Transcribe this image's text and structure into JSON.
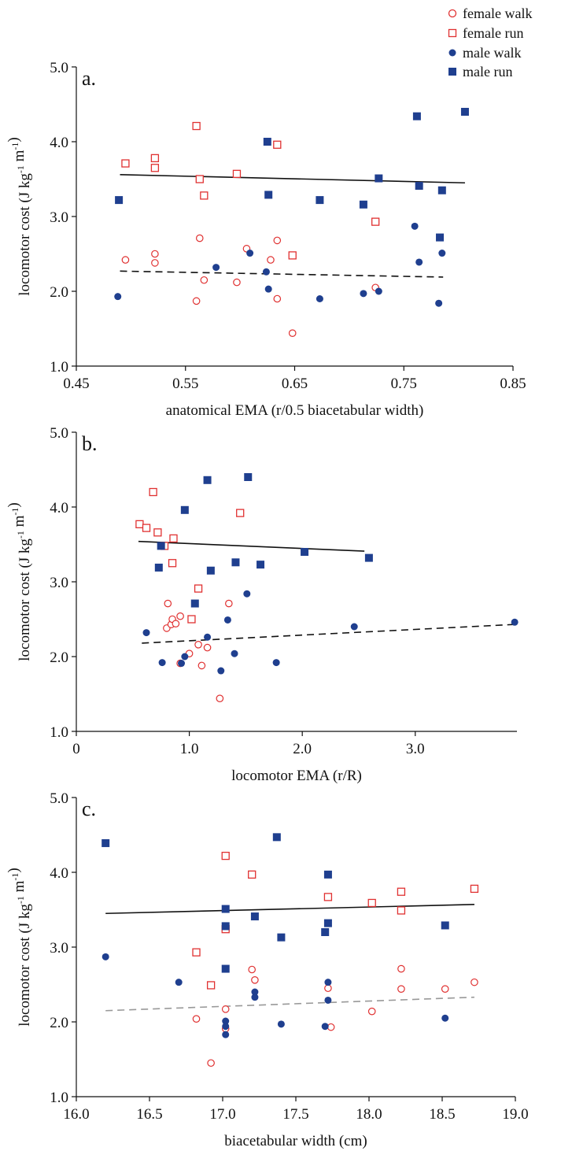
{
  "legend": {
    "items": [
      {
        "label": "female walk",
        "marker": "circle",
        "filled": false,
        "color": "#e03131"
      },
      {
        "label": "female run",
        "marker": "square",
        "filled": false,
        "color": "#e03131"
      },
      {
        "label": "male walk",
        "marker": "circle",
        "filled": true,
        "color": "#1f3f8f"
      },
      {
        "label": "male run",
        "marker": "square",
        "filled": true,
        "color": "#1f3f8f"
      }
    ]
  },
  "colors": {
    "female": "#e03131",
    "male": "#1f3f8f",
    "axis": "#111111",
    "fit_walk_c": "#999999"
  },
  "chart_data": [
    {
      "type": "scatter",
      "panel": "a.",
      "xlabel": "anatomical EMA (r/0.5 biacetabular width)",
      "ylabel": "locomotor cost (J kg-1 m-1)",
      "xlim": [
        0.45,
        0.85
      ],
      "ylim": [
        1.0,
        5.0
      ],
      "xticks": [
        0.45,
        0.55,
        0.65,
        0.75,
        0.85
      ],
      "xtick_labels": [
        "0.45",
        "0.55",
        "0.65",
        "0.75",
        "0.85"
      ],
      "yticks": [
        1.0,
        2.0,
        3.0,
        4.0,
        5.0
      ],
      "ytick_labels": [
        "1.0",
        "2.0",
        "3.0",
        "4.0",
        "5.0"
      ],
      "series": [
        {
          "name": "female walk",
          "points": [
            [
              0.495,
              2.42
            ],
            [
              0.522,
              2.5
            ],
            [
              0.522,
              2.38
            ],
            [
              0.56,
              1.87
            ],
            [
              0.563,
              2.71
            ],
            [
              0.567,
              2.15
            ],
            [
              0.597,
              2.12
            ],
            [
              0.606,
              2.57
            ],
            [
              0.628,
              2.42
            ],
            [
              0.634,
              2.68
            ],
            [
              0.634,
              1.9
            ],
            [
              0.648,
              1.44
            ],
            [
              0.724,
              2.05
            ]
          ]
        },
        {
          "name": "female run",
          "points": [
            [
              0.495,
              3.71
            ],
            [
              0.522,
              3.78
            ],
            [
              0.522,
              3.65
            ],
            [
              0.56,
              4.21
            ],
            [
              0.563,
              3.5
            ],
            [
              0.567,
              3.28
            ],
            [
              0.597,
              3.57
            ],
            [
              0.634,
              3.96
            ],
            [
              0.648,
              2.48
            ],
            [
              0.724,
              2.93
            ]
          ]
        },
        {
          "name": "male walk",
          "points": [
            [
              0.488,
              1.93
            ],
            [
              0.578,
              2.32
            ],
            [
              0.609,
              2.51
            ],
            [
              0.624,
              2.26
            ],
            [
              0.626,
              2.03
            ],
            [
              0.673,
              1.9
            ],
            [
              0.713,
              1.97
            ],
            [
              0.727,
              2.0
            ],
            [
              0.76,
              2.87
            ],
            [
              0.764,
              2.39
            ],
            [
              0.782,
              1.84
            ],
            [
              0.785,
              2.51
            ]
          ]
        },
        {
          "name": "male run",
          "points": [
            [
              0.489,
              3.22
            ],
            [
              0.625,
              4.0
            ],
            [
              0.626,
              3.29
            ],
            [
              0.673,
              3.22
            ],
            [
              0.713,
              3.16
            ],
            [
              0.727,
              3.51
            ],
            [
              0.762,
              4.34
            ],
            [
              0.764,
              3.41
            ],
            [
              0.783,
              2.72
            ],
            [
              0.785,
              3.35
            ],
            [
              0.806,
              4.4
            ]
          ]
        }
      ],
      "fits": [
        {
          "group": "run",
          "style": "solid",
          "x": [
            0.49,
            0.806
          ],
          "y": [
            3.56,
            3.45
          ]
        },
        {
          "group": "walk",
          "style": "dashed",
          "x": [
            0.49,
            0.786
          ],
          "y": [
            2.27,
            2.19
          ]
        }
      ]
    },
    {
      "type": "scatter",
      "panel": "b.",
      "xlabel": "locomotor EMA (r/R)",
      "ylabel": "locomotor cost (J kg-1 m-1)",
      "xlim": [
        0,
        3.9
      ],
      "ylim": [
        1.0,
        5.0
      ],
      "xticks": [
        0,
        1.0,
        2.0,
        3.0
      ],
      "xtick_labels": [
        "0",
        "1.0",
        "2.0",
        "3.0"
      ],
      "yticks": [
        1.0,
        2.0,
        3.0,
        4.0,
        5.0
      ],
      "ytick_labels": [
        "1.0",
        "2.0",
        "3.0",
        "4.0",
        "5.0"
      ],
      "series": [
        {
          "name": "female walk",
          "points": [
            [
              0.8,
              2.38
            ],
            [
              0.81,
              2.71
            ],
            [
              0.84,
              2.43
            ],
            [
              0.85,
              2.5
            ],
            [
              0.88,
              2.44
            ],
            [
              0.92,
              2.54
            ],
            [
              0.92,
              1.91
            ],
            [
              1.0,
              2.04
            ],
            [
              1.08,
              2.16
            ],
            [
              1.11,
              1.88
            ],
            [
              1.16,
              2.12
            ],
            [
              1.27,
              1.44
            ],
            [
              1.35,
              2.71
            ]
          ]
        },
        {
          "name": "female run",
          "points": [
            [
              0.56,
              3.77
            ],
            [
              0.62,
              3.72
            ],
            [
              0.68,
              4.2
            ],
            [
              0.72,
              3.66
            ],
            [
              0.78,
              3.48
            ],
            [
              0.85,
              3.25
            ],
            [
              0.86,
              3.58
            ],
            [
              1.02,
              2.5
            ],
            [
              1.08,
              2.91
            ],
            [
              1.45,
              3.92
            ]
          ]
        },
        {
          "name": "male walk",
          "points": [
            [
              0.62,
              2.32
            ],
            [
              0.76,
              1.92
            ],
            [
              0.93,
              1.91
            ],
            [
              0.96,
              2.0
            ],
            [
              1.16,
              2.26
            ],
            [
              1.28,
              1.81
            ],
            [
              1.34,
              2.49
            ],
            [
              1.4,
              2.04
            ],
            [
              1.51,
              2.84
            ],
            [
              1.77,
              1.92
            ],
            [
              2.46,
              2.4
            ],
            [
              3.88,
              2.46
            ]
          ]
        },
        {
          "name": "male run",
          "points": [
            [
              0.73,
              3.19
            ],
            [
              0.75,
              3.48
            ],
            [
              0.96,
              3.96
            ],
            [
              1.05,
              2.71
            ],
            [
              1.16,
              4.36
            ],
            [
              1.19,
              3.15
            ],
            [
              1.41,
              3.26
            ],
            [
              1.52,
              4.4
            ],
            [
              1.63,
              3.23
            ],
            [
              2.02,
              3.4
            ],
            [
              2.59,
              3.32
            ]
          ]
        }
      ],
      "fits": [
        {
          "group": "run",
          "style": "solid",
          "x": [
            0.55,
            2.55
          ],
          "y": [
            3.54,
            3.41
          ]
        },
        {
          "group": "walk",
          "style": "dashed",
          "x": [
            0.58,
            3.88
          ],
          "y": [
            2.18,
            2.43
          ]
        }
      ]
    },
    {
      "type": "scatter",
      "panel": "c.",
      "xlabel": "biacetabular width (cm)",
      "ylabel": "locomotor cost (J kg-1 m-1)",
      "xlim": [
        16.0,
        19.0
      ],
      "ylim": [
        1.0,
        5.0
      ],
      "xticks": [
        16.0,
        16.5,
        17.0,
        17.5,
        18.0,
        18.5,
        19.0
      ],
      "xtick_labels": [
        "16.0",
        "16.5",
        "17.0",
        "17.5",
        "18.0",
        "18.5",
        "19.0"
      ],
      "yticks": [
        1.0,
        2.0,
        3.0,
        4.0,
        5.0
      ],
      "ytick_labels": [
        "1.0",
        "2.0",
        "3.0",
        "4.0",
        "5.0"
      ],
      "series": [
        {
          "name": "female walk",
          "points": [
            [
              16.82,
              2.04
            ],
            [
              16.92,
              1.45
            ],
            [
              17.02,
              2.17
            ],
            [
              17.02,
              1.91
            ],
            [
              17.2,
              2.7
            ],
            [
              17.22,
              2.56
            ],
            [
              17.72,
              2.45
            ],
            [
              17.74,
              1.93
            ],
            [
              18.02,
              2.14
            ],
            [
              18.22,
              2.71
            ],
            [
              18.22,
              2.44
            ],
            [
              18.52,
              2.44
            ],
            [
              18.72,
              2.53
            ]
          ]
        },
        {
          "name": "female run",
          "points": [
            [
              16.82,
              2.93
            ],
            [
              16.92,
              2.49
            ],
            [
              17.02,
              4.22
            ],
            [
              17.02,
              3.24
            ],
            [
              17.2,
              3.97
            ],
            [
              17.72,
              3.67
            ],
            [
              18.02,
              3.59
            ],
            [
              18.22,
              3.74
            ],
            [
              18.22,
              3.49
            ],
            [
              18.72,
              3.78
            ]
          ]
        },
        {
          "name": "male walk",
          "points": [
            [
              16.2,
              2.87
            ],
            [
              16.7,
              2.53
            ],
            [
              17.02,
              2.01
            ],
            [
              17.02,
              1.94
            ],
            [
              17.02,
              1.83
            ],
            [
              17.22,
              2.4
            ],
            [
              17.22,
              2.33
            ],
            [
              17.4,
              1.97
            ],
            [
              17.7,
              1.94
            ],
            [
              17.72,
              2.53
            ],
            [
              17.72,
              2.29
            ],
            [
              18.52,
              2.05
            ]
          ]
        },
        {
          "name": "male run",
          "points": [
            [
              16.2,
              4.39
            ],
            [
              17.02,
              3.51
            ],
            [
              17.02,
              3.28
            ],
            [
              17.02,
              2.71
            ],
            [
              17.22,
              3.41
            ],
            [
              17.37,
              4.47
            ],
            [
              17.4,
              3.13
            ],
            [
              17.7,
              3.2
            ],
            [
              17.72,
              3.97
            ],
            [
              17.72,
              3.32
            ],
            [
              18.52,
              3.29
            ]
          ]
        }
      ],
      "fits": [
        {
          "group": "run",
          "style": "solid",
          "x": [
            16.2,
            18.72
          ],
          "y": [
            3.45,
            3.57
          ]
        },
        {
          "group": "walk",
          "style": "dashed-gray",
          "x": [
            16.2,
            18.72
          ],
          "y": [
            2.15,
            2.33
          ]
        }
      ]
    }
  ]
}
